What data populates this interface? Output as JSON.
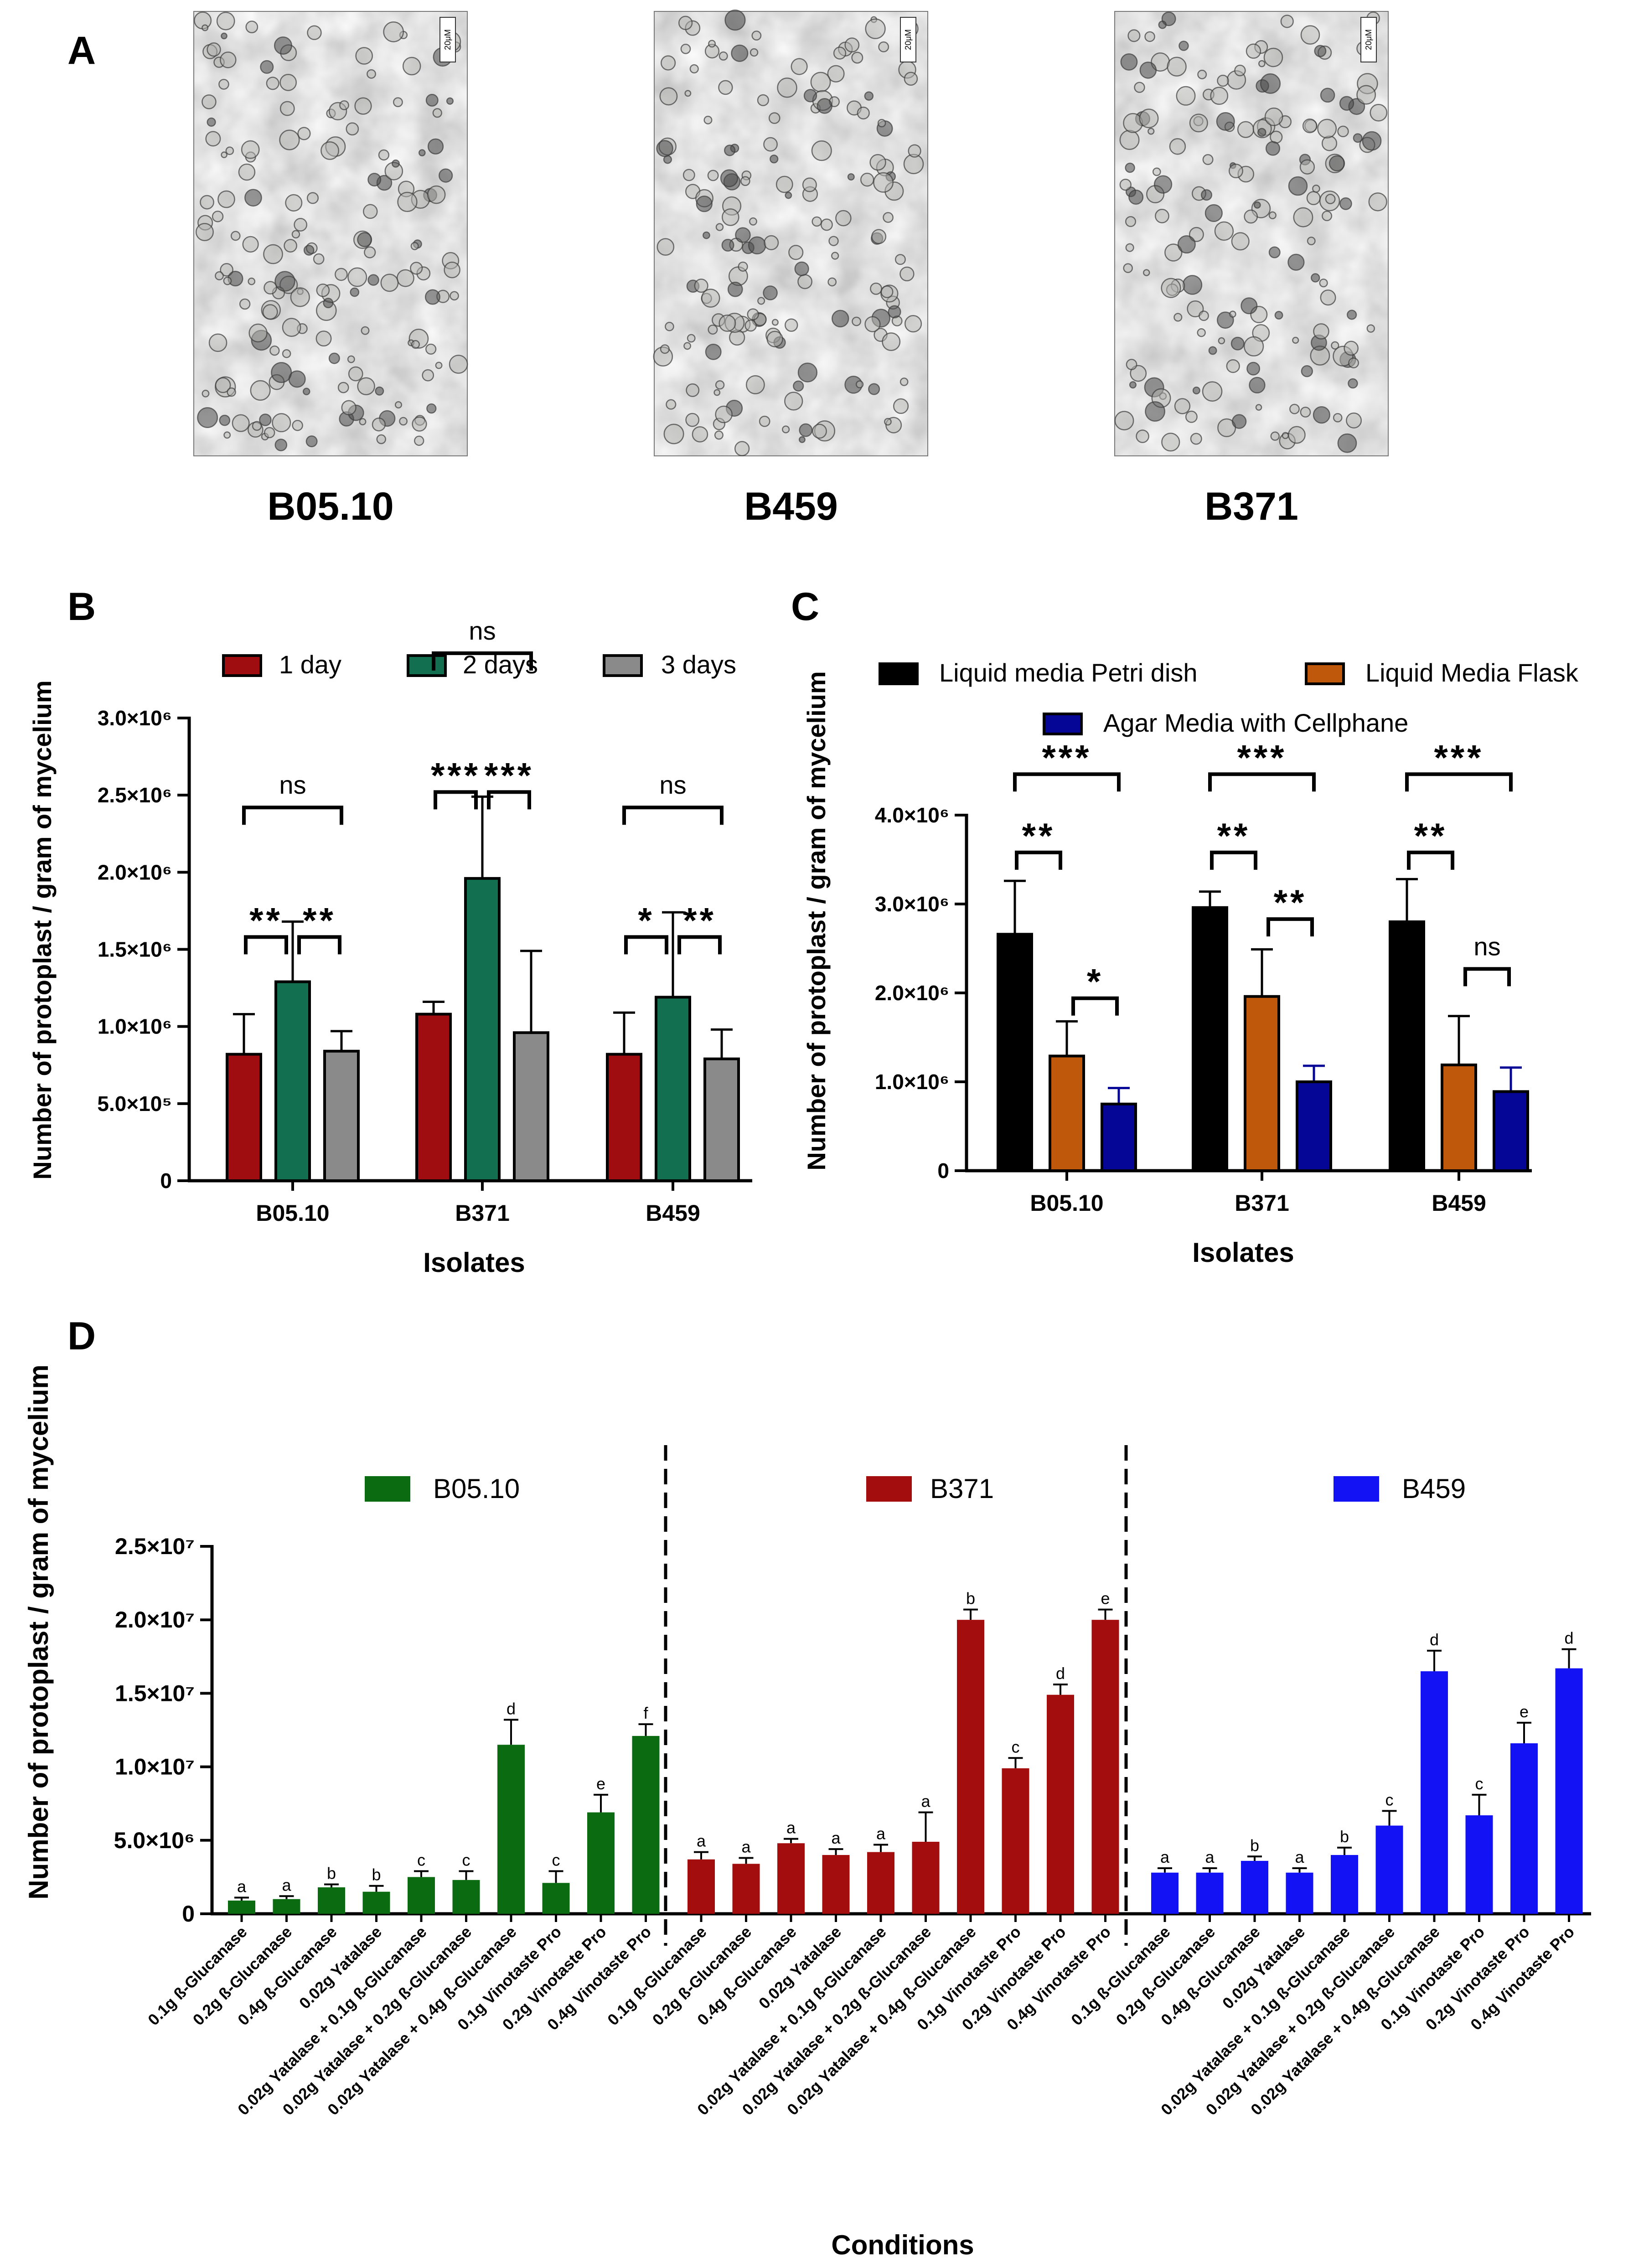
{
  "panel_letters": {
    "a": "A",
    "b": "B",
    "c": "C",
    "d": "D"
  },
  "panel_a": {
    "images": [
      {
        "label": "B05.10",
        "scale_bar": "20μM"
      },
      {
        "label": "B459",
        "scale_bar": "20μM"
      },
      {
        "label": "B371",
        "scale_bar": "20μM"
      }
    ]
  },
  "colors": {
    "day1": "#a00d11",
    "day2": "#127050",
    "day3": "#8a8a8a",
    "petri": "#000000",
    "flask": "#c0580c",
    "agar": "#050596",
    "b0510": "#0b6b10",
    "b371": "#a30d0d",
    "b459": "#1212f5"
  },
  "chart_data": [
    {
      "id": "B",
      "type": "bar",
      "xlabel": "Isolates",
      "ylabel": "Number of protoplast / gram of mycelium",
      "ylim": [
        0,
        3000000
      ],
      "yticks": [
        {
          "v": 0,
          "t": "0"
        },
        {
          "v": 500000,
          "t": "5.0×10⁵"
        },
        {
          "v": 1000000,
          "t": "1.0×10⁶"
        },
        {
          "v": 1500000,
          "t": "1.5×10⁶"
        },
        {
          "v": 2000000,
          "t": "2.0×10⁶"
        },
        {
          "v": 2500000,
          "t": "2.5×10⁶"
        },
        {
          "v": 3000000,
          "t": "3.0×10⁶"
        }
      ],
      "categories": [
        "B05.10",
        "B371",
        "B459"
      ],
      "series": [
        {
          "name": "1 day",
          "color_key": "day1",
          "values": [
            820000,
            1080000,
            820000
          ],
          "errors": [
            260000,
            80000,
            270000
          ]
        },
        {
          "name": "2 days",
          "color_key": "day2",
          "values": [
            1290000,
            1960000,
            1190000
          ],
          "errors": [
            390000,
            530000,
            550000
          ]
        },
        {
          "name": "3 days",
          "color_key": "day3",
          "values": [
            840000,
            960000,
            790000
          ],
          "errors": [
            130000,
            530000,
            190000
          ]
        }
      ],
      "significance": [
        {
          "group": 0,
          "from": 0,
          "to": 1,
          "label": "**",
          "level": 1580000
        },
        {
          "group": 0,
          "from": 1,
          "to": 2,
          "label": "**",
          "level": 1580000
        },
        {
          "group": 0,
          "from": 0,
          "to": 2,
          "label": "ns",
          "level": 2420000
        },
        {
          "group": 1,
          "from": 0,
          "to": 1,
          "label": "***",
          "level": 2520000
        },
        {
          "group": 1,
          "from": 1,
          "to": 2,
          "label": "***",
          "level": 2520000
        },
        {
          "group": 1,
          "from": 0,
          "to": 2,
          "label": "ns",
          "level": 3420000
        },
        {
          "group": 2,
          "from": 0,
          "to": 1,
          "label": "*",
          "level": 1580000
        },
        {
          "group": 2,
          "from": 1,
          "to": 2,
          "label": "**",
          "level": 1580000
        },
        {
          "group": 2,
          "from": 0,
          "to": 2,
          "label": "ns",
          "level": 2420000
        }
      ]
    },
    {
      "id": "C",
      "type": "bar",
      "xlabel": "Isolates",
      "ylabel": "Number of protoplast / gram of mycelium",
      "ylim": [
        0,
        4000000
      ],
      "yticks": [
        {
          "v": 0,
          "t": "0"
        },
        {
          "v": 1000000,
          "t": "1.0×10⁶"
        },
        {
          "v": 2000000,
          "t": "2.0×10⁶"
        },
        {
          "v": 3000000,
          "t": "3.0×10⁶"
        },
        {
          "v": 4000000,
          "t": "4.0×10⁶"
        }
      ],
      "categories": [
        "B05.10",
        "B371",
        "B459"
      ],
      "series": [
        {
          "name": "Liquid media Petri dish",
          "color_key": "petri",
          "values": [
            2660000,
            2960000,
            2800000
          ],
          "errors": [
            600000,
            180000,
            480000
          ]
        },
        {
          "name": "Liquid Media Flask",
          "color_key": "flask",
          "values": [
            1290000,
            1960000,
            1190000
          ],
          "errors": [
            390000,
            530000,
            550000
          ]
        },
        {
          "name": "Agar Media with Cellphane",
          "color_key": "agar",
          "values": [
            750000,
            1000000,
            890000
          ],
          "errors": [
            180000,
            180000,
            270000
          ]
        }
      ],
      "significance": [
        {
          "group": 0,
          "from": 0,
          "to": 1,
          "label": "**",
          "level": 3580000
        },
        {
          "group": 0,
          "from": 1,
          "to": 2,
          "label": "*",
          "level": 1940000
        },
        {
          "group": 0,
          "from": 0,
          "to": 2,
          "label": "***",
          "level": 4460000
        },
        {
          "group": 1,
          "from": 0,
          "to": 1,
          "label": "**",
          "level": 3580000
        },
        {
          "group": 1,
          "from": 1,
          "to": 2,
          "label": "**",
          "level": 2830000
        },
        {
          "group": 1,
          "from": 0,
          "to": 2,
          "label": "***",
          "level": 4460000
        },
        {
          "group": 2,
          "from": 0,
          "to": 1,
          "label": "**",
          "level": 3580000
        },
        {
          "group": 2,
          "from": 1,
          "to": 2,
          "label": "ns",
          "level": 2270000
        },
        {
          "group": 2,
          "from": 0,
          "to": 2,
          "label": "***",
          "level": 4460000
        }
      ]
    },
    {
      "id": "D",
      "type": "bar",
      "xlabel": "Conditions",
      "ylabel": "Number of protoplast / gram of mycelium",
      "ylim": [
        0,
        25000000
      ],
      "yticks": [
        {
          "v": 0,
          "t": "0"
        },
        {
          "v": 5000000,
          "t": "5.0×10⁶"
        },
        {
          "v": 10000000,
          "t": "1.0×10⁷"
        },
        {
          "v": 15000000,
          "t": "1.5×10⁷"
        },
        {
          "v": 20000000,
          "t": "2.0×10⁷"
        },
        {
          "v": 25000000,
          "t": "2.5×10⁷"
        }
      ],
      "categories": [
        "0.1g ß-Glucanase",
        "0.2g ß-Glucanase",
        "0.4g ß-Glucanase",
        "0.02g Yatalase",
        "0.02g Yatalase + 0.1g ß-Glucanase",
        "0.02g Yatalase + 0.2g ß-Glucanase",
        "0.02g Yatalase + 0.4g ß-Glucanase",
        "0.1g Vinotaste Pro",
        "0.2g Vinotaste Pro",
        "0.4g Vinotaste Pro"
      ],
      "groups": [
        {
          "name": "B05.10",
          "color_key": "b0510",
          "values": [
            900000,
            1000000,
            1800000,
            1500000,
            2500000,
            2300000,
            11500000,
            2100000,
            6900000,
            12100000
          ],
          "errors": [
            200000,
            200000,
            200000,
            400000,
            400000,
            600000,
            1700000,
            800000,
            1200000,
            800000
          ],
          "letters": [
            "a",
            "a",
            "b",
            "b",
            "c",
            "c",
            "d",
            "c",
            "e",
            "f"
          ]
        },
        {
          "name": "B371",
          "color_key": "b371",
          "values": [
            3700000,
            3400000,
            4800000,
            4000000,
            4200000,
            4900000,
            20000000,
            9900000,
            14900000,
            20000000
          ],
          "errors": [
            500000,
            400000,
            300000,
            400000,
            500000,
            2000000,
            700000,
            700000,
            700000,
            700000
          ],
          "letters": [
            "a",
            "a",
            "a",
            "a",
            "a",
            "a",
            "b",
            "c",
            "d",
            "e"
          ]
        },
        {
          "name": "B459",
          "color_key": "b459",
          "values": [
            2800000,
            2800000,
            3600000,
            2800000,
            4000000,
            6000000,
            16500000,
            6700000,
            11600000,
            16700000
          ],
          "errors": [
            300000,
            300000,
            300000,
            300000,
            500000,
            1000000,
            1400000,
            1400000,
            1400000,
            1300000
          ],
          "letters": [
            "a",
            "a",
            "b",
            "a",
            "b",
            "c",
            "d",
            "c",
            "e",
            "d"
          ]
        }
      ]
    }
  ]
}
